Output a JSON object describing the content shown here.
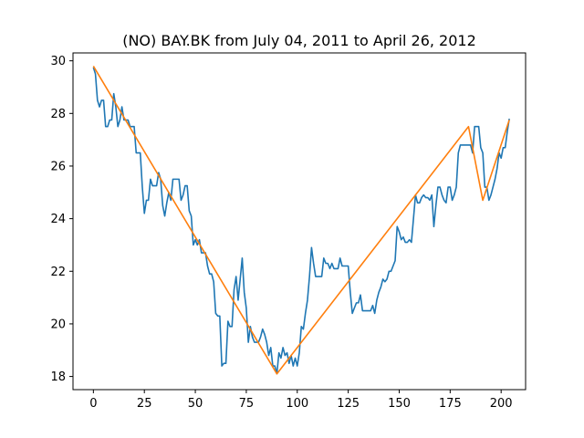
{
  "chart_data": {
    "type": "line",
    "title": "(NO) BAY.BK from July 04, 2011 to April 26, 2012",
    "xlabel": "",
    "ylabel": "",
    "xlim": [
      -10,
      212
    ],
    "ylim": [
      17.5,
      30.3
    ],
    "xticks": [
      0,
      25,
      50,
      75,
      100,
      125,
      150,
      175,
      200
    ],
    "yticks": [
      18,
      20,
      22,
      24,
      26,
      28,
      30
    ],
    "grid": false,
    "series": [
      {
        "color": "#1f77b4",
        "points": [
          [
            0,
            29.75
          ],
          [
            1,
            29.5
          ],
          [
            2,
            28.5
          ],
          [
            3,
            28.25
          ],
          [
            4,
            28.5
          ],
          [
            5,
            28.5
          ],
          [
            6,
            27.5
          ],
          [
            7,
            27.5
          ],
          [
            8,
            27.75
          ],
          [
            9,
            27.75
          ],
          [
            10,
            28.75
          ],
          [
            11,
            28.25
          ],
          [
            12,
            27.5
          ],
          [
            13,
            27.75
          ],
          [
            14,
            28.25
          ],
          [
            15,
            27.75
          ],
          [
            16,
            27.75
          ],
          [
            17,
            27.75
          ],
          [
            18,
            27.5
          ],
          [
            19,
            27.5
          ],
          [
            20,
            27.5
          ],
          [
            21,
            26.5
          ],
          [
            22,
            26.5
          ],
          [
            23,
            26.5
          ],
          [
            24,
            25.2
          ],
          [
            25,
            24.2
          ],
          [
            26,
            24.7
          ],
          [
            27,
            24.7
          ],
          [
            28,
            25.5
          ],
          [
            29,
            25.25
          ],
          [
            30,
            25.25
          ],
          [
            31,
            25.25
          ],
          [
            32,
            25.75
          ],
          [
            33,
            25.5
          ],
          [
            34,
            24.5
          ],
          [
            35,
            24.1
          ],
          [
            36,
            24.6
          ],
          [
            37,
            25
          ],
          [
            38,
            24.7
          ],
          [
            39,
            25.5
          ],
          [
            40,
            25.5
          ],
          [
            41,
            25.5
          ],
          [
            42,
            25.5
          ],
          [
            43,
            24.7
          ],
          [
            44,
            24.9
          ],
          [
            45,
            25.25
          ],
          [
            46,
            25.25
          ],
          [
            47,
            24.3
          ],
          [
            48,
            24.1
          ],
          [
            49,
            23
          ],
          [
            50,
            23.2
          ],
          [
            51,
            23
          ],
          [
            52,
            23.2
          ],
          [
            53,
            22.7
          ],
          [
            54,
            22.7
          ],
          [
            55,
            22.7
          ],
          [
            56,
            22.2
          ],
          [
            57,
            21.9
          ],
          [
            58,
            21.9
          ],
          [
            59,
            21.6
          ],
          [
            60,
            20.4
          ],
          [
            61,
            20.3
          ],
          [
            62,
            20.3
          ],
          [
            63,
            18.4
          ],
          [
            64,
            18.5
          ],
          [
            65,
            18.5
          ],
          [
            66,
            20.1
          ],
          [
            67,
            19.9
          ],
          [
            68,
            19.9
          ],
          [
            69,
            21.3
          ],
          [
            70,
            21.8
          ],
          [
            71,
            20.9
          ],
          [
            72,
            21.7
          ],
          [
            73,
            22.5
          ],
          [
            74,
            21.2
          ],
          [
            75,
            20.6
          ],
          [
            76,
            19.3
          ],
          [
            77,
            19.9
          ],
          [
            78,
            19.5
          ],
          [
            79,
            19.3
          ],
          [
            80,
            19.3
          ],
          [
            81,
            19.3
          ],
          [
            82,
            19.5
          ],
          [
            83,
            19.8
          ],
          [
            84,
            19.6
          ],
          [
            85,
            19.3
          ],
          [
            86,
            18.8
          ],
          [
            87,
            19.1
          ],
          [
            88,
            18.4
          ],
          [
            89,
            18.4
          ],
          [
            90,
            18.1
          ],
          [
            91,
            18.9
          ],
          [
            92,
            18.7
          ],
          [
            93,
            19.1
          ],
          [
            94,
            18.8
          ],
          [
            95,
            18.9
          ],
          [
            96,
            18.5
          ],
          [
            97,
            18.8
          ],
          [
            98,
            18.4
          ],
          [
            99,
            18.7
          ],
          [
            100,
            18.4
          ],
          [
            101,
            18.9
          ],
          [
            102,
            19.9
          ],
          [
            103,
            19.8
          ],
          [
            104,
            20.4
          ],
          [
            105,
            20.9
          ],
          [
            106,
            21.8
          ],
          [
            107,
            22.9
          ],
          [
            108,
            22.3
          ],
          [
            109,
            21.8
          ],
          [
            110,
            21.8
          ],
          [
            111,
            21.8
          ],
          [
            112,
            21.8
          ],
          [
            113,
            22.5
          ],
          [
            114,
            22.3
          ],
          [
            115,
            22.3
          ],
          [
            116,
            22.1
          ],
          [
            117,
            22.3
          ],
          [
            118,
            22.1
          ],
          [
            119,
            22.1
          ],
          [
            120,
            22.1
          ],
          [
            121,
            22.5
          ],
          [
            122,
            22.2
          ],
          [
            123,
            22.2
          ],
          [
            124,
            22.2
          ],
          [
            125,
            22.2
          ],
          [
            126,
            21.2
          ],
          [
            127,
            20.4
          ],
          [
            128,
            20.6
          ],
          [
            129,
            20.8
          ],
          [
            130,
            20.8
          ],
          [
            131,
            21.1
          ],
          [
            132,
            20.5
          ],
          [
            133,
            20.5
          ],
          [
            134,
            20.5
          ],
          [
            135,
            20.5
          ],
          [
            136,
            20.5
          ],
          [
            137,
            20.7
          ],
          [
            138,
            20.4
          ],
          [
            139,
            20.9
          ],
          [
            140,
            21.2
          ],
          [
            141,
            21.4
          ],
          [
            142,
            21.7
          ],
          [
            143,
            21.6
          ],
          [
            144,
            21.7
          ],
          [
            145,
            22
          ],
          [
            146,
            22
          ],
          [
            147,
            22.2
          ],
          [
            148,
            22.4
          ],
          [
            149,
            23.7
          ],
          [
            150,
            23.5
          ],
          [
            151,
            23.2
          ],
          [
            152,
            23.3
          ],
          [
            153,
            23.1
          ],
          [
            154,
            23.1
          ],
          [
            155,
            23.2
          ],
          [
            156,
            23.1
          ],
          [
            157,
            24
          ],
          [
            158,
            24.9
          ],
          [
            159,
            24.6
          ],
          [
            160,
            24.6
          ],
          [
            161,
            24.8
          ],
          [
            162,
            24.9
          ],
          [
            163,
            24.8
          ],
          [
            164,
            24.8
          ],
          [
            165,
            24.7
          ],
          [
            166,
            24.9
          ],
          [
            167,
            23.7
          ],
          [
            168,
            24.5
          ],
          [
            169,
            25.2
          ],
          [
            170,
            25.2
          ],
          [
            171,
            24.9
          ],
          [
            172,
            24.7
          ],
          [
            173,
            24.6
          ],
          [
            174,
            25.2
          ],
          [
            175,
            25.2
          ],
          [
            176,
            24.7
          ],
          [
            177,
            24.9
          ],
          [
            178,
            25.2
          ],
          [
            179,
            26.5
          ],
          [
            180,
            26.8
          ],
          [
            181,
            26.8
          ],
          [
            182,
            26.8
          ],
          [
            183,
            26.8
          ],
          [
            184,
            26.8
          ],
          [
            185,
            26.8
          ],
          [
            186,
            26.5
          ],
          [
            187,
            27.5
          ],
          [
            188,
            27.5
          ],
          [
            189,
            27.5
          ],
          [
            190,
            26.7
          ],
          [
            191,
            26.5
          ],
          [
            192,
            25.2
          ],
          [
            193,
            25.2
          ],
          [
            194,
            24.7
          ],
          [
            195,
            24.9
          ],
          [
            196,
            25.2
          ],
          [
            197,
            25.5
          ],
          [
            198,
            25.9
          ],
          [
            199,
            26.5
          ],
          [
            200,
            26.3
          ],
          [
            201,
            26.7
          ],
          [
            202,
            26.7
          ],
          [
            203,
            27.3
          ],
          [
            204,
            27.8
          ]
        ]
      },
      {
        "color": "#ff7f0e",
        "points": [
          [
            0,
            29.8
          ],
          [
            90,
            18.1
          ],
          [
            184,
            27.5
          ],
          [
            191,
            24.7
          ],
          [
            204,
            27.75
          ]
        ]
      }
    ]
  }
}
